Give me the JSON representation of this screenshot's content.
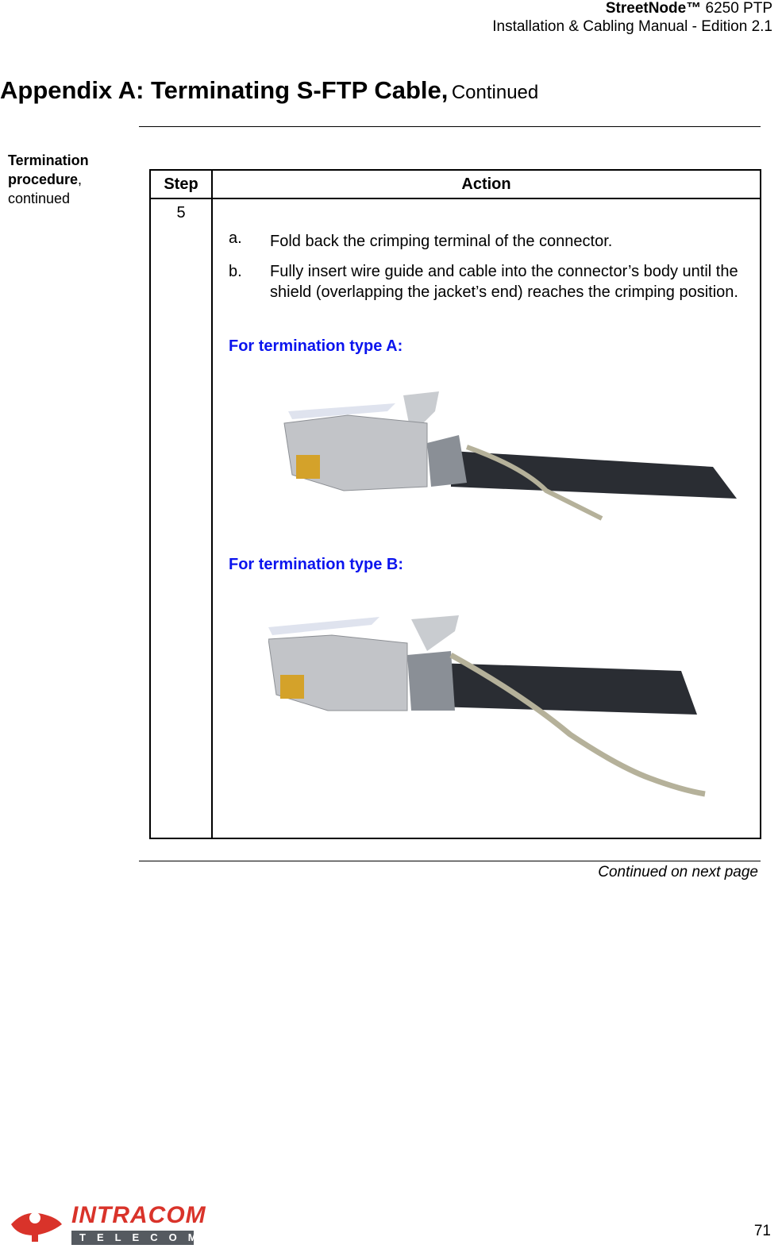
{
  "header": {
    "product": "StreetNode™",
    "model": "6250 PTP",
    "manual": "Installation & Cabling Manual - Edition 2.1"
  },
  "title": {
    "main": "Appendix A: Terminating S-FTP Cable,",
    "suffix": "Continued"
  },
  "sidebar": {
    "term": "Termination procedure",
    "punct": ",",
    "note": "continued"
  },
  "table": {
    "headers": [
      "Step",
      "Action"
    ],
    "rows": [
      {
        "step": "5",
        "items": [
          {
            "marker": "a.",
            "text": "Fold back the crimping terminal of the connector."
          },
          {
            "marker": "b.",
            "text": "Fully insert wire guide and cable into the connector’s body until the shield (overlapping the jacket’s end) reaches the crimping position."
          }
        ],
        "sections": [
          {
            "heading": "For termination type A:"
          },
          {
            "heading": "For termination type B:"
          }
        ]
      }
    ]
  },
  "footer": {
    "continued": "Continued on next page",
    "logo": {
      "name": "INTRACOM",
      "sub": "TELECOM"
    },
    "page": "71"
  }
}
